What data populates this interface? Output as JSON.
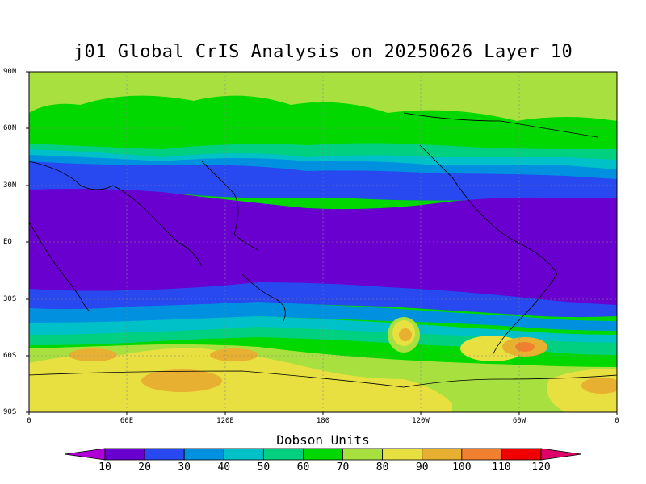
{
  "title": "j01 Global CrIS Analysis on 20250626 Layer 10",
  "lat_labels": [
    "90N",
    "60N",
    "30N",
    "EQ",
    "30S",
    "60S",
    "90S"
  ],
  "lon_labels": [
    "0",
    "60E",
    "120E",
    "180",
    "120W",
    "60W",
    "0"
  ],
  "colorbar": {
    "title": "Dobson Units",
    "labels": [
      "10",
      "20",
      "30",
      "40",
      "50",
      "60",
      "70",
      "80",
      "90",
      "100",
      "110",
      "120"
    ],
    "colors": [
      "#b000d8",
      "#6a00d0",
      "#2848f0",
      "#0090e0",
      "#00c0c8",
      "#00d080",
      "#00d800",
      "#a8e040",
      "#e8e040",
      "#e8b030",
      "#f08030",
      "#f00000",
      "#e0006a"
    ]
  },
  "bands": {
    "colors": {
      "purple": "#6a00d0",
      "blue": "#2848f0",
      "skyblue": "#0090e0",
      "cyan": "#00c0c8",
      "teal": "#00d080",
      "green": "#00d800",
      "ltgreen": "#a8e040",
      "yellow": "#e8e040",
      "orange": "#e8b030",
      "red": "#f08030"
    }
  }
}
